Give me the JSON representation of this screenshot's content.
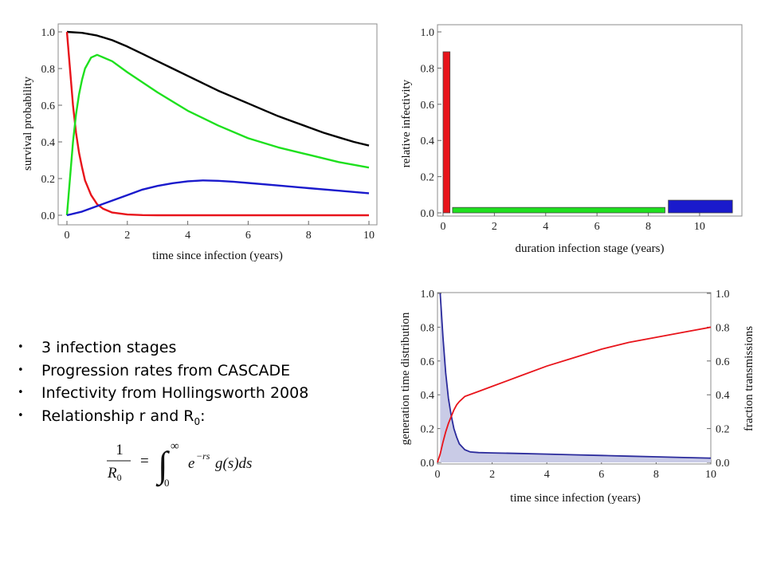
{
  "bullets": [
    {
      "text": "3 infection stages"
    },
    {
      "text": "Progression rates from CASCADE"
    },
    {
      "text": "Infectivity from Hollingsworth 2008"
    },
    {
      "text": "Relationship r and R",
      "sub": "0",
      "after": ":"
    }
  ],
  "formula": {
    "numerator": "1",
    "denominator": "R",
    "denominator_sub": "0",
    "equals": "=",
    "upper_limit": "∞",
    "lower_limit": "0",
    "integrand": "e",
    "exponent": "−rs",
    "rest": "g(s)ds"
  },
  "colors": {
    "red": "#e8141b",
    "green": "#1ee01e",
    "blue": "#1a1acc",
    "black": "#000000",
    "navy": "#2b2b9c",
    "shade": "#c9cbe6"
  },
  "chart_data": [
    {
      "type": "line",
      "xlabel": "time since infection (years)",
      "ylabel": "survival probability",
      "xlim": [
        0,
        10
      ],
      "ylim": [
        0,
        1
      ],
      "xticks": [
        "0",
        "2",
        "4",
        "6",
        "8",
        "10"
      ],
      "yticks": [
        "0.0",
        "0.2",
        "0.4",
        "0.6",
        "0.8",
        "1.0"
      ],
      "series": [
        {
          "color": "black",
          "x": [
            0,
            0.5,
            1,
            1.5,
            2,
            2.5,
            3,
            3.5,
            4,
            4.5,
            5,
            5.5,
            6,
            6.5,
            7,
            7.5,
            8,
            8.5,
            9,
            9.5,
            10
          ],
          "y": [
            1.0,
            0.995,
            0.98,
            0.955,
            0.92,
            0.88,
            0.84,
            0.8,
            0.76,
            0.72,
            0.68,
            0.645,
            0.61,
            0.575,
            0.54,
            0.51,
            0.48,
            0.45,
            0.425,
            0.4,
            0.38
          ]
        },
        {
          "color": "red",
          "x": [
            0,
            0.1,
            0.2,
            0.3,
            0.4,
            0.5,
            0.6,
            0.8,
            1,
            1.2,
            1.5,
            2,
            2.5,
            3,
            4,
            6,
            8,
            10
          ],
          "y": [
            1.0,
            0.8,
            0.6,
            0.45,
            0.34,
            0.26,
            0.19,
            0.11,
            0.06,
            0.035,
            0.015,
            0.004,
            0.001,
            0,
            0,
            0,
            0,
            0
          ]
        },
        {
          "color": "green",
          "x": [
            0,
            0.1,
            0.2,
            0.3,
            0.4,
            0.5,
            0.6,
            0.8,
            1,
            1.5,
            2,
            3,
            4,
            5,
            6,
            7,
            8,
            9,
            10
          ],
          "y": [
            0,
            0.2,
            0.4,
            0.55,
            0.66,
            0.74,
            0.8,
            0.86,
            0.875,
            0.84,
            0.78,
            0.67,
            0.57,
            0.49,
            0.42,
            0.37,
            0.33,
            0.29,
            0.26
          ]
        },
        {
          "color": "blue",
          "x": [
            0,
            0.5,
            1,
            1.5,
            2,
            2.5,
            3,
            3.5,
            4,
            4.5,
            5,
            5.5,
            6,
            7,
            8,
            9,
            10
          ],
          "y": [
            0,
            0.02,
            0.05,
            0.08,
            0.11,
            0.14,
            0.16,
            0.175,
            0.185,
            0.19,
            0.188,
            0.183,
            0.176,
            0.162,
            0.148,
            0.134,
            0.12
          ]
        }
      ]
    },
    {
      "type": "bar",
      "xlabel": "duration infection stage (years)",
      "ylabel": "relative infectivity",
      "xlim": [
        0,
        11.4
      ],
      "ylim": [
        0,
        1
      ],
      "xticks": [
        "0",
        "2",
        "4",
        "6",
        "8",
        "10"
      ],
      "yticks": [
        "0.0",
        "0.2",
        "0.4",
        "0.6",
        "0.8",
        "1.0"
      ],
      "bars": [
        {
          "color": "red",
          "x_start": 0,
          "x_end": 0.27,
          "value": 0.89
        },
        {
          "color": "green",
          "x_start": 0.37,
          "x_end": 8.65,
          "value": 0.03
        },
        {
          "color": "blue",
          "x_start": 8.78,
          "x_end": 11.28,
          "value": 0.07
        }
      ]
    },
    {
      "type": "area",
      "xlabel": "time since infection (years)",
      "ylabel": "generation time distribution",
      "y2label": "fraction transmissions",
      "xlim": [
        0,
        10
      ],
      "ylim": [
        0,
        1
      ],
      "y2lim": [
        0,
        1
      ],
      "xticks": [
        "0",
        "2",
        "4",
        "6",
        "8",
        "10"
      ],
      "yticks": [
        "0.0",
        "0.2",
        "0.4",
        "0.6",
        "0.8",
        "1.0"
      ],
      "series": [
        {
          "color": "navy",
          "filled": true,
          "x": [
            0.1,
            0.2,
            0.3,
            0.4,
            0.5,
            0.6,
            0.7,
            0.8,
            1,
            1.2,
            1.5,
            2,
            3,
            4,
            5,
            6,
            7,
            8,
            9,
            10
          ],
          "y": [
            1.0,
            0.74,
            0.53,
            0.38,
            0.28,
            0.2,
            0.15,
            0.11,
            0.075,
            0.062,
            0.058,
            0.056,
            0.053,
            0.049,
            0.045,
            0.041,
            0.037,
            0.033,
            0.029,
            0.025
          ]
        },
        {
          "color": "red",
          "axis": "right",
          "x": [
            0,
            0.1,
            0.2,
            0.3,
            0.4,
            0.5,
            0.6,
            0.7,
            0.8,
            1,
            1.5,
            2,
            3,
            4,
            5,
            6,
            7,
            8,
            9,
            10
          ],
          "y": [
            0,
            0.05,
            0.12,
            0.18,
            0.23,
            0.27,
            0.31,
            0.34,
            0.36,
            0.39,
            0.42,
            0.45,
            0.51,
            0.57,
            0.62,
            0.67,
            0.71,
            0.74,
            0.77,
            0.8
          ]
        }
      ]
    }
  ]
}
